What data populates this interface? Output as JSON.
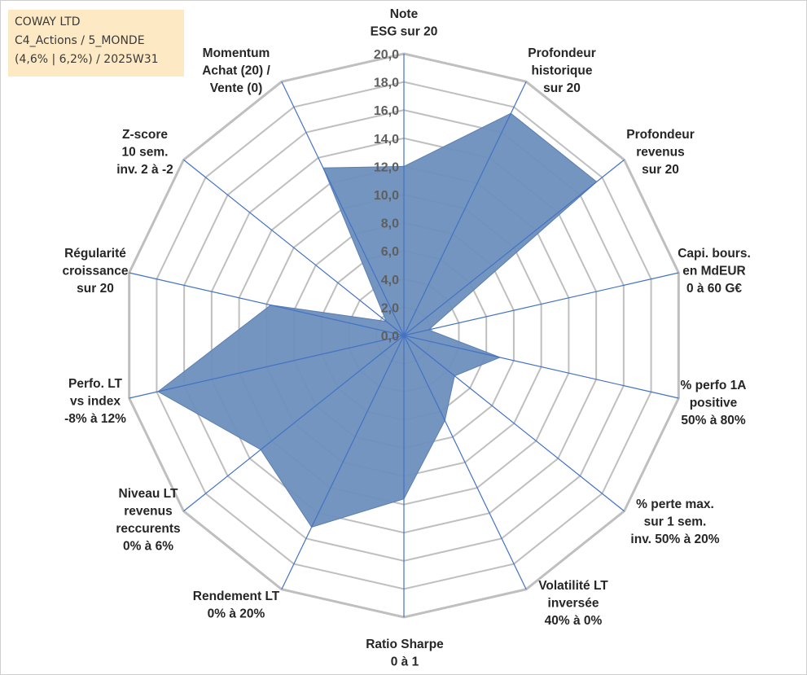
{
  "title_box": {
    "line1": "COWAY LTD",
    "line2": "C4_Actions / 5_MONDE",
    "line3": "(4,6% | 6,2%) / 2025W31"
  },
  "chart_data": {
    "type": "radar",
    "rmin": 0,
    "rmax": 20,
    "ticks": [
      "0,0",
      "2,0",
      "4,0",
      "6,0",
      "8,0",
      "10,0",
      "12,0",
      "14,0",
      "16,0",
      "18,0",
      "20,0"
    ],
    "grid": true,
    "axes": [
      {
        "label": [
          "Note",
          "ESG sur 20"
        ],
        "value": 12.0
      },
      {
        "label": [
          "Profondeur",
          "historique",
          "sur 20"
        ],
        "value": 17.5
      },
      {
        "label": [
          "Profondeur",
          "revenus",
          "sur 20"
        ],
        "value": 17.5
      },
      {
        "label": [
          "Capi. bours.",
          "en MdEUR",
          "0 à 60 G€"
        ],
        "value": 1.8
      },
      {
        "label": [
          "% perfo 1A",
          "positive",
          "50% à 80%"
        ],
        "value": 7.0
      },
      {
        "label": [
          "% perte max.",
          "sur 1 sem.",
          "inv. 50% à 20%"
        ],
        "value": 4.6
      },
      {
        "label": [
          "Volatilité LT",
          "inversée",
          "40% à 0%"
        ],
        "value": 6.7
      },
      {
        "label": [
          "Ratio Sharpe",
          "0 à 1"
        ],
        "value": 11.6
      },
      {
        "label": [
          "Rendement LT",
          "0% à 20%"
        ],
        "value": 15.1
      },
      {
        "label": [
          "Niveau LT",
          "revenus",
          "reccurents",
          "0% à 6%"
        ],
        "value": 13.0
      },
      {
        "label": [
          "Perfo. LT",
          "vs index",
          "-8% à 12%"
        ],
        "value": 17.9
      },
      {
        "label": [
          "Régularité",
          "croissance",
          "sur 20"
        ],
        "value": 9.7
      },
      {
        "label": [
          "Z-score",
          "10 sem.",
          "inv. 2 à -2"
        ],
        "value": 1.6
      },
      {
        "label": [
          "Momentum",
          "Achat (20) /",
          "Vente (0)"
        ],
        "value": 13.2
      }
    ],
    "series": [
      {
        "color": "#6b8fbd",
        "line_color": "#5a7fb0"
      }
    ],
    "axis_color": "#4472c4",
    "grid_color": "#bfbfbf"
  }
}
